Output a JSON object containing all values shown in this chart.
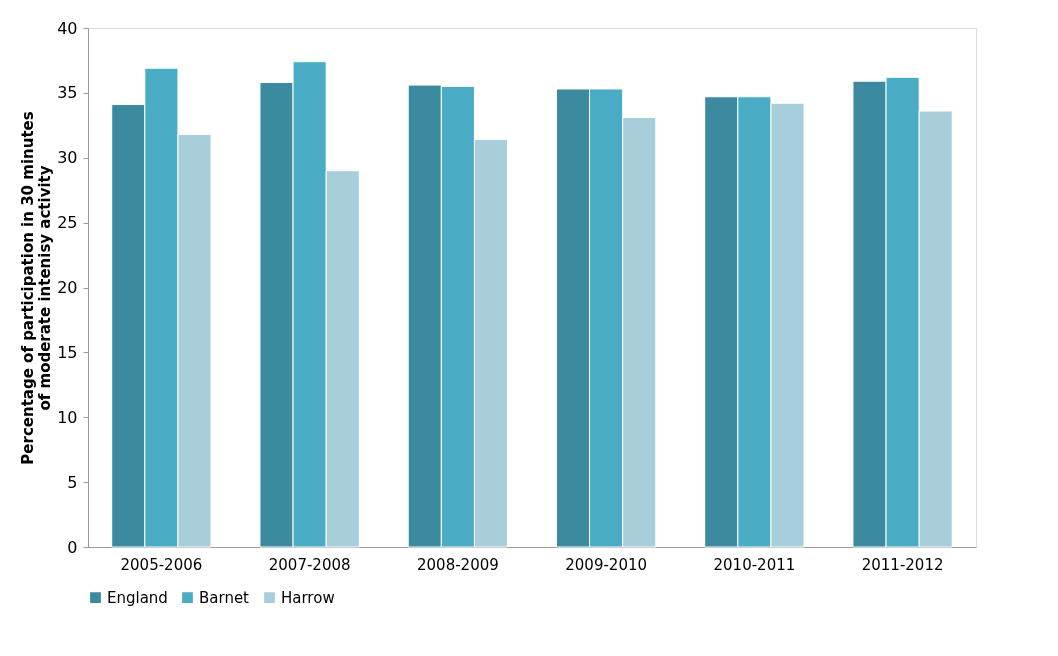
{
  "chart_data": {
    "type": "bar",
    "ylabel": "Percentage of participation in 30 minutes of moderate intenisy activity",
    "categories": [
      "2005-2006",
      "2007-2008",
      "2008-2009",
      "2009-2010",
      "2010-2011",
      "2011-2012"
    ],
    "series": [
      {
        "name": "England",
        "color": "#3c8aa0",
        "values": [
          34.1,
          35.8,
          35.6,
          35.3,
          34.7,
          35.9
        ]
      },
      {
        "name": "Barnet",
        "color": "#4aabc5",
        "values": [
          36.9,
          37.4,
          35.5,
          35.3,
          34.7,
          36.2
        ]
      },
      {
        "name": "Harrow",
        "color": "#a9cedb",
        "values": [
          31.8,
          29.0,
          31.4,
          33.1,
          34.2,
          33.6
        ]
      }
    ],
    "ylim": [
      0,
      40
    ],
    "yticks": [
      0,
      5,
      10,
      15,
      20,
      25,
      30,
      35,
      40
    ],
    "grid": false,
    "legend": "bottom"
  }
}
